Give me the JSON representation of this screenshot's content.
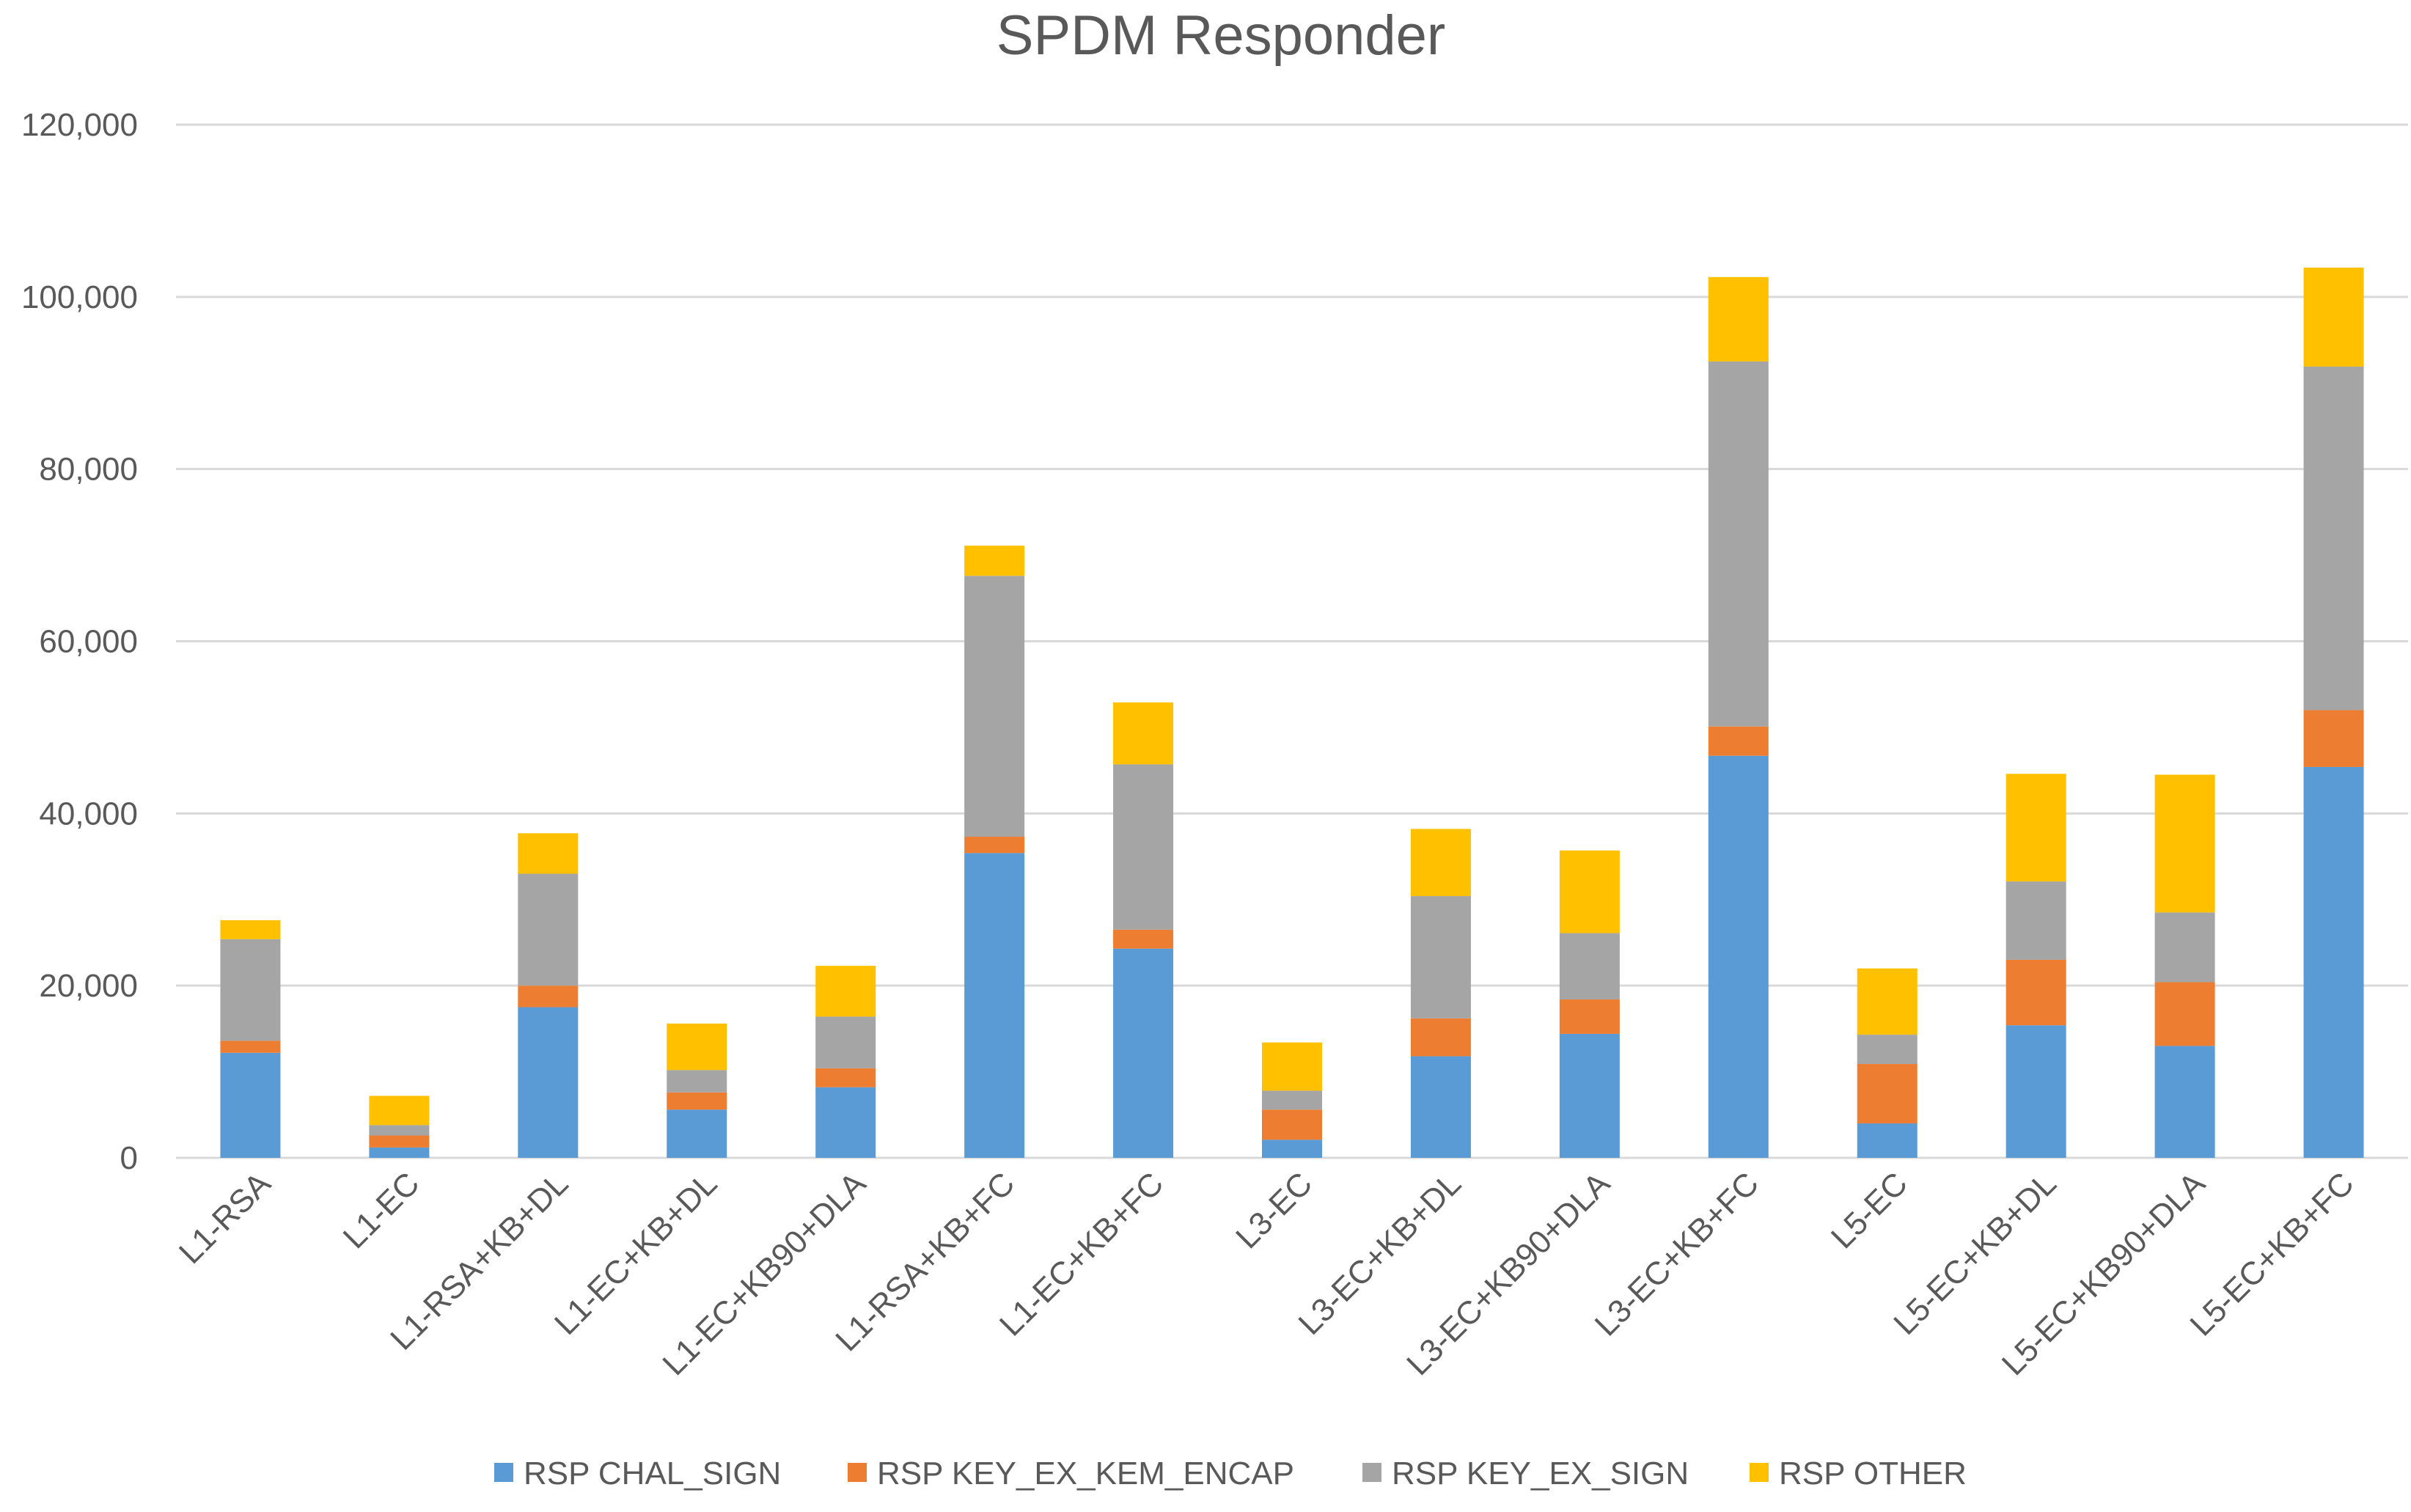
{
  "chart_data": {
    "type": "bar",
    "stacked": true,
    "title": "SPDM Responder",
    "xlabel": "",
    "ylabel": "",
    "ylim": [
      0,
      120000
    ],
    "yticks": [
      0,
      20000,
      40000,
      60000,
      80000,
      100000,
      120000
    ],
    "ytick_labels": [
      "0",
      "20,000",
      "40,000",
      "60,000",
      "80,000",
      "100,000",
      "120,000"
    ],
    "grid": true,
    "legend_position": "bottom",
    "categories": [
      "L1-RSA",
      "L1-EC",
      "L1-RSA+KB+DL",
      "L1-EC+KB+DL",
      "L1-EC+KB90+DLA",
      "L1-RSA+KB+FC",
      "L1-EC+KB+FC",
      "L3-EC",
      "L3-EC+KB+DL",
      "L3-EC+KB90+DLA",
      "L3-EC+KB+FC",
      "L5-EC",
      "L5-EC+KB+DL",
      "L5-EC+KB90+DLA",
      "L5-EC+KB+FC"
    ],
    "series": [
      {
        "name": "RSP CHAL_SIGN",
        "color": "#5B9BD5",
        "values": [
          12200,
          1200,
          17500,
          5600,
          8200,
          35400,
          24300,
          2100,
          11800,
          14400,
          46700,
          4000,
          15400,
          13000,
          45400
        ]
      },
      {
        "name": "RSP KEY_EX_KEM_ENCAP",
        "color": "#ED7D31",
        "values": [
          1400,
          1400,
          2500,
          2000,
          2200,
          1900,
          2200,
          3500,
          4400,
          4000,
          3400,
          6900,
          7600,
          7400,
          6600
        ]
      },
      {
        "name": "RSP KEY_EX_SIGN",
        "color": "#A5A5A5",
        "values": [
          11800,
          1200,
          13000,
          2600,
          6000,
          30300,
          19200,
          2200,
          14200,
          7700,
          42400,
          3400,
          9100,
          8100,
          39900
        ]
      },
      {
        "name": "RSP OTHER",
        "color": "#FFC000",
        "values": [
          2200,
          3400,
          4700,
          5400,
          5900,
          3500,
          7200,
          5600,
          7800,
          9600,
          9800,
          7700,
          12500,
          16000,
          11500
        ]
      }
    ]
  }
}
